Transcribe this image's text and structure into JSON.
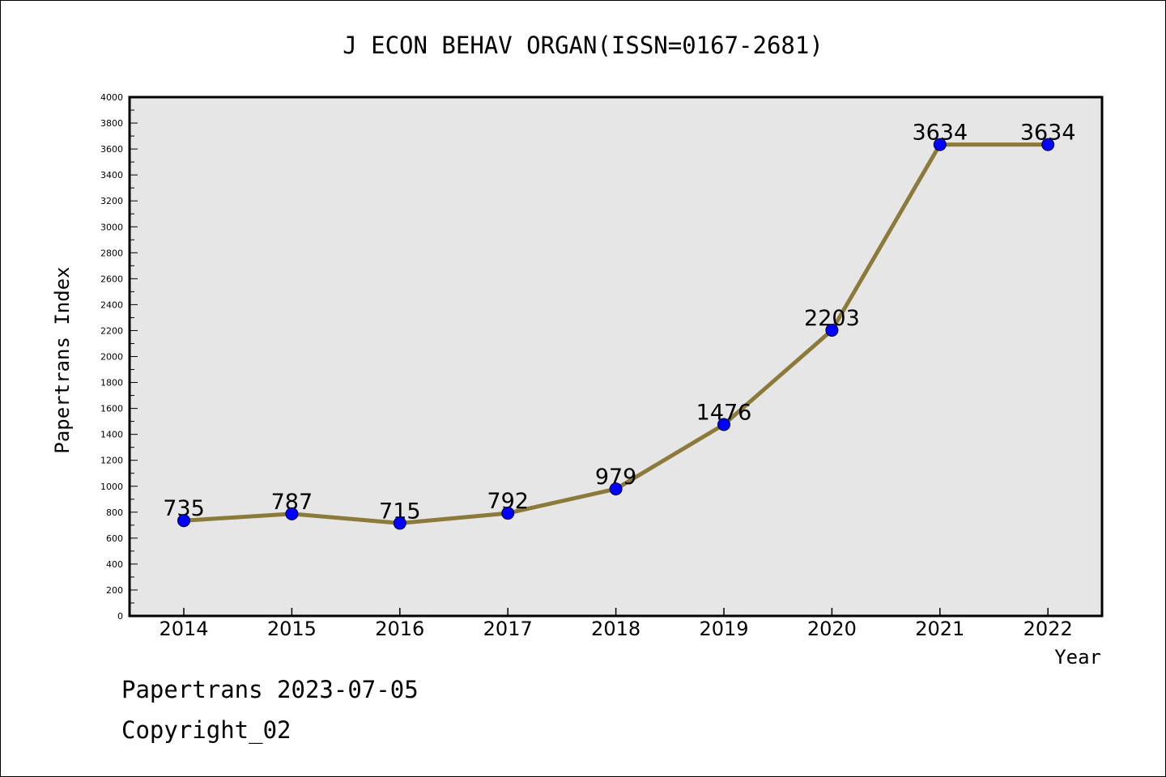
{
  "chart_data": {
    "type": "line",
    "title": "J ECON BEHAV ORGAN(ISSN=0167-2681)",
    "xlabel": "Year",
    "ylabel": "Papertrans Index",
    "x": [
      "2014",
      "2015",
      "2016",
      "2017",
      "2018",
      "2019",
      "2020",
      "2021",
      "2022"
    ],
    "series": [
      {
        "values": [
          735,
          787,
          715,
          792,
          979,
          1476,
          2203,
          3634,
          3634
        ]
      }
    ],
    "ylim": [
      0,
      4000
    ],
    "yticks": [
      0,
      200,
      400,
      600,
      800,
      1000,
      1200,
      1400,
      1600,
      1800,
      2000,
      2200,
      2400,
      2600,
      2800,
      3000,
      3200,
      3400,
      3600,
      3800,
      4000
    ],
    "grid": false,
    "colors": {
      "line": "#8c7a3a",
      "marker": "#0000ff",
      "plot_background": "#e6e6e6"
    }
  },
  "footer": {
    "date_line": "Papertrans 2023-07-05",
    "copyright_line": "Copyright_02"
  }
}
